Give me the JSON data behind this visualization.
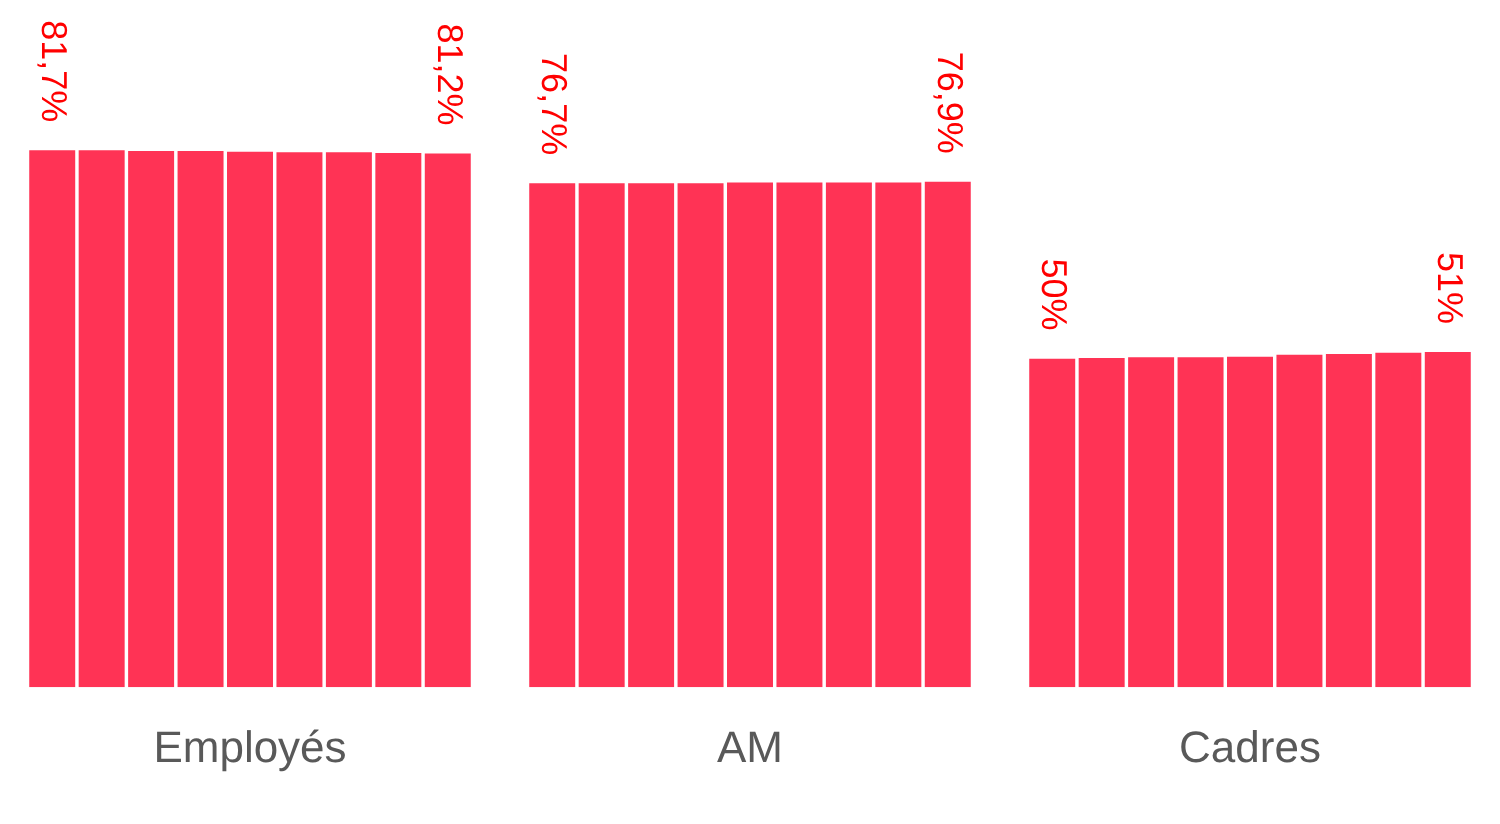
{
  "chart_data": {
    "type": "bar",
    "categories": [
      "Employés",
      "AM",
      "Cadres"
    ],
    "tick_labels": "x",
    "grid": false,
    "legend": false,
    "series": [
      {
        "color": "#ff3355",
        "values": [
          81.7,
          76.7,
          50
        ],
        "value_labels": [
          "81,7%",
          "76,7%",
          "50%"
        ]
      },
      {
        "color": "#ff3355",
        "values": [
          81.7,
          76.7,
          50.1
        ],
        "value_labels": [
          null,
          null,
          null
        ]
      },
      {
        "color": "#ff3355",
        "values": [
          81.6,
          76.7,
          50.2
        ],
        "value_labels": [
          null,
          null,
          null
        ]
      },
      {
        "color": "#ff3355",
        "values": [
          81.6,
          76.7,
          50.2
        ],
        "value_labels": [
          null,
          null,
          null
        ]
      },
      {
        "color": "#ff3355",
        "values": [
          81.5,
          76.8,
          50.3
        ],
        "value_labels": [
          null,
          null,
          null
        ]
      },
      {
        "color": "#ff3355",
        "values": [
          81.4,
          76.8,
          50.6
        ],
        "value_labels": [
          null,
          null,
          null
        ]
      },
      {
        "color": "#ff3355",
        "values": [
          81.4,
          76.8,
          50.7
        ],
        "value_labels": [
          null,
          null,
          null
        ]
      },
      {
        "color": "#ff3355",
        "values": [
          81.3,
          76.8,
          50.9
        ],
        "value_labels": [
          null,
          null,
          null
        ]
      },
      {
        "color": "#ff3355",
        "values": [
          81.2,
          76.9,
          51
        ],
        "value_labels": [
          "81,2%",
          "76,9%",
          "51%"
        ]
      }
    ]
  }
}
